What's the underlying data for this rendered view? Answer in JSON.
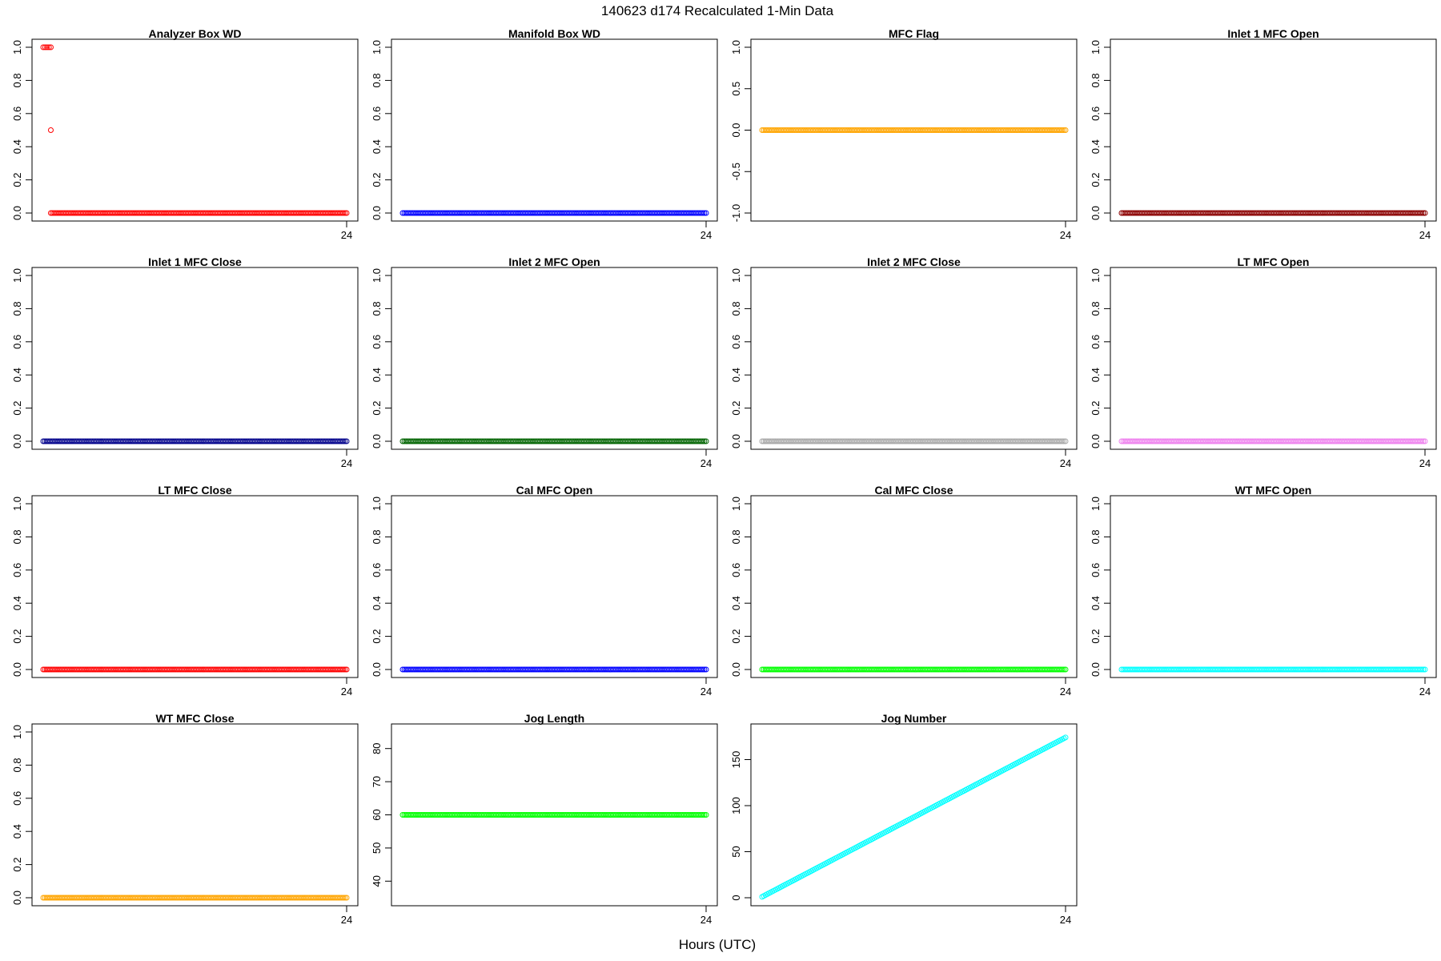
{
  "figure": {
    "title": "140623   d174   Recalculated 1-Min Data",
    "xlabel": "Hours (UTC)"
  },
  "chart_data": [
    {
      "type": "scatter",
      "title": "Analyzer Box WD",
      "color": "#ff0000",
      "ylim": [
        0,
        1
      ],
      "yticks": [
        "0.0",
        "0.2",
        "0.4",
        "0.6",
        "0.8",
        "1.0"
      ],
      "xtick": "24",
      "series": [
        {
          "segments": [
            {
              "x0": 0.0,
              "x1": 0.6,
              "y": 1
            },
            {
              "x0": 0.6,
              "x1": 0.6,
              "y": 0.5
            },
            {
              "x0": 0.6,
              "x1": 24.0,
              "y": 0
            }
          ]
        }
      ]
    },
    {
      "type": "scatter",
      "title": "Manifold Box WD",
      "color": "#0000ff",
      "ylim": [
        0,
        1
      ],
      "yticks": [
        "0.0",
        "0.2",
        "0.4",
        "0.6",
        "0.8",
        "1.0"
      ],
      "xtick": "24",
      "series": [
        {
          "segments": [
            {
              "x0": 0.0,
              "x1": 24.0,
              "y": 0
            }
          ]
        }
      ]
    },
    {
      "type": "scatter",
      "title": "MFC Flag",
      "color": "#ffa500",
      "ylim": [
        -1,
        1
      ],
      "yticks": [
        "-1.0",
        "-0.5",
        "0.0",
        "0.5",
        "1.0"
      ],
      "xtick": "24",
      "series": [
        {
          "segments": [
            {
              "x0": 0.0,
              "x1": 24.0,
              "y": 0
            }
          ]
        }
      ]
    },
    {
      "type": "scatter",
      "title": "Inlet 1 MFC Open",
      "color": "#8b0000",
      "ylim": [
        0,
        1
      ],
      "yticks": [
        "0.0",
        "0.2",
        "0.4",
        "0.6",
        "0.8",
        "1.0"
      ],
      "xtick": "24",
      "series": [
        {
          "segments": [
            {
              "x0": 0.0,
              "x1": 24.0,
              "y": 0
            }
          ]
        }
      ]
    },
    {
      "type": "scatter",
      "title": "Inlet 1 MFC Close",
      "color": "#00008b",
      "ylim": [
        0,
        1
      ],
      "yticks": [
        "0.0",
        "0.2",
        "0.4",
        "0.6",
        "0.8",
        "1.0"
      ],
      "xtick": "24",
      "series": [
        {
          "segments": [
            {
              "x0": 0.0,
              "x1": 24.0,
              "y": 0
            }
          ]
        }
      ]
    },
    {
      "type": "scatter",
      "title": "Inlet 2 MFC Open",
      "color": "#006400",
      "ylim": [
        0,
        1
      ],
      "yticks": [
        "0.0",
        "0.2",
        "0.4",
        "0.6",
        "0.8",
        "1.0"
      ],
      "xtick": "24",
      "series": [
        {
          "segments": [
            {
              "x0": 0.0,
              "x1": 24.0,
              "y": 0
            }
          ]
        }
      ]
    },
    {
      "type": "scatter",
      "title": "Inlet 2 MFC Close",
      "color": "#a9a9a9",
      "ylim": [
        0,
        1
      ],
      "yticks": [
        "0.0",
        "0.2",
        "0.4",
        "0.6",
        "0.8",
        "1.0"
      ],
      "xtick": "24",
      "series": [
        {
          "segments": [
            {
              "x0": 0.0,
              "x1": 24.0,
              "y": 0
            }
          ]
        }
      ]
    },
    {
      "type": "scatter",
      "title": "LT MFC Open",
      "color": "#ee82ee",
      "ylim": [
        0,
        1
      ],
      "yticks": [
        "0.0",
        "0.2",
        "0.4",
        "0.6",
        "0.8",
        "1.0"
      ],
      "xtick": "24",
      "series": [
        {
          "segments": [
            {
              "x0": 0.0,
              "x1": 24.0,
              "y": 0
            }
          ]
        }
      ]
    },
    {
      "type": "scatter",
      "title": "LT MFC Close",
      "color": "#ff0000",
      "ylim": [
        0,
        1
      ],
      "yticks": [
        "0.0",
        "0.2",
        "0.4",
        "0.6",
        "0.8",
        "1.0"
      ],
      "xtick": "24",
      "series": [
        {
          "segments": [
            {
              "x0": 0.0,
              "x1": 24.0,
              "y": 0
            }
          ]
        }
      ]
    },
    {
      "type": "scatter",
      "title": "Cal MFC Open",
      "color": "#0000ff",
      "ylim": [
        0,
        1
      ],
      "yticks": [
        "0.0",
        "0.2",
        "0.4",
        "0.6",
        "0.8",
        "1.0"
      ],
      "xtick": "24",
      "series": [
        {
          "segments": [
            {
              "x0": 0.0,
              "x1": 24.0,
              "y": 0
            }
          ]
        }
      ]
    },
    {
      "type": "scatter",
      "title": "Cal MFC Close",
      "color": "#00ff00",
      "ylim": [
        0,
        1
      ],
      "yticks": [
        "0.0",
        "0.2",
        "0.4",
        "0.6",
        "0.8",
        "1.0"
      ],
      "xtick": "24",
      "series": [
        {
          "segments": [
            {
              "x0": 0.0,
              "x1": 24.0,
              "y": 0
            }
          ]
        }
      ]
    },
    {
      "type": "scatter",
      "title": "WT MFC Open",
      "color": "#00ffff",
      "ylim": [
        0,
        1
      ],
      "yticks": [
        "0.0",
        "0.2",
        "0.4",
        "0.6",
        "0.8",
        "1.0"
      ],
      "xtick": "24",
      "series": [
        {
          "segments": [
            {
              "x0": 0.0,
              "x1": 24.0,
              "y": 0
            }
          ]
        }
      ]
    },
    {
      "type": "scatter",
      "title": "WT MFC Close",
      "color": "#ffa500",
      "ylim": [
        0,
        1
      ],
      "yticks": [
        "0.0",
        "0.2",
        "0.4",
        "0.6",
        "0.8",
        "1.0"
      ],
      "xtick": "24",
      "series": [
        {
          "segments": [
            {
              "x0": 0.0,
              "x1": 24.0,
              "y": 0
            }
          ]
        }
      ]
    },
    {
      "type": "scatter",
      "title": "Jog Length",
      "color": "#00ff00",
      "ylim": [
        35,
        85
      ],
      "yticks": [
        "40",
        "50",
        "60",
        "70",
        "80"
      ],
      "xtick": "24",
      "series": [
        {
          "segments": [
            {
              "x0": 0.0,
              "x1": 24.0,
              "y": 60
            }
          ]
        }
      ]
    },
    {
      "type": "scatter",
      "title": "Jog Number",
      "color": "#00ffff",
      "ylim": [
        0,
        180
      ],
      "yticks": [
        "0",
        "50",
        "100",
        "150"
      ],
      "xtick": "24",
      "series": [
        {
          "segments": [
            {
              "x0": 0.0,
              "x1": 24.0,
              "y0": 1,
              "y1": 174
            }
          ]
        }
      ]
    }
  ]
}
